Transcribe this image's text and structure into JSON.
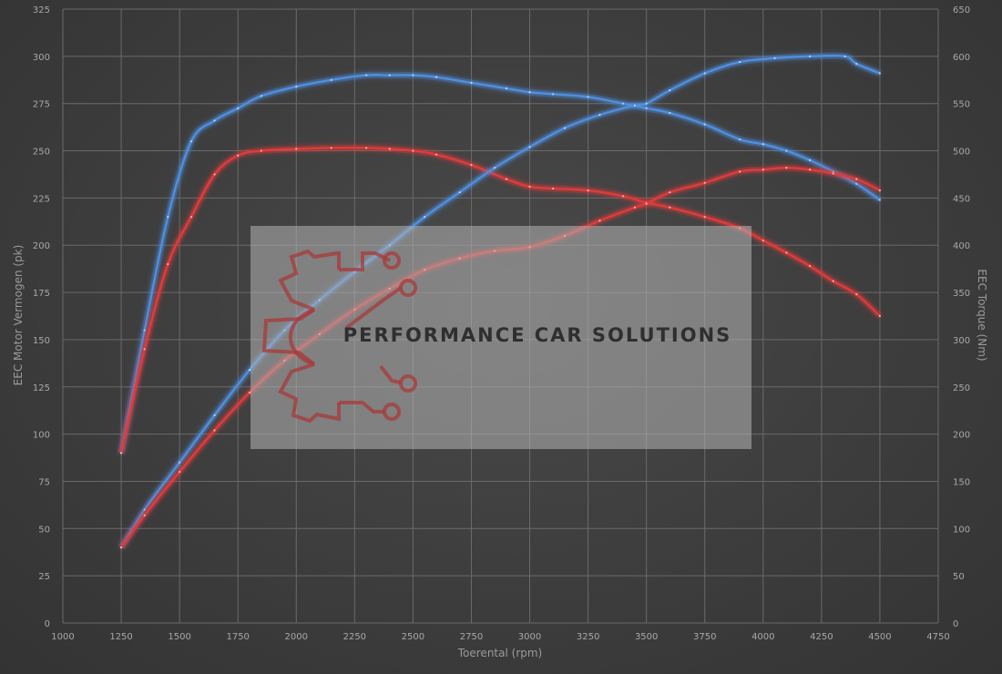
{
  "chart_data": {
    "type": "line",
    "xlabel": "Toerental (rpm)",
    "ylabel_left": "EEC Motor Vermogen (pk)",
    "ylabel_right": "EEC Torque (Nm)",
    "xlim": [
      1000,
      4750
    ],
    "xticks": [
      1000,
      1250,
      1500,
      1750,
      2000,
      2250,
      2500,
      2750,
      3000,
      3250,
      3500,
      3750,
      4000,
      4250,
      4500,
      4750
    ],
    "ylim_left": [
      0,
      325
    ],
    "yticks_left": [
      0,
      25,
      50,
      75,
      100,
      125,
      150,
      175,
      200,
      225,
      250,
      275,
      300,
      325
    ],
    "ylim_right": [
      0,
      650
    ],
    "yticks_right": [
      0,
      50,
      100,
      150,
      200,
      250,
      300,
      350,
      400,
      450,
      500,
      550,
      600,
      650
    ],
    "grid": true,
    "series": [
      {
        "color": "#4f8fe0",
        "axis": "right",
        "x": [
          1250,
          1350,
          1450,
          1550,
          1650,
          1750,
          1850,
          2000,
          2150,
          2300,
          2400,
          2500,
          2600,
          2750,
          2900,
          3000,
          3100,
          3250,
          3400,
          3500,
          3600,
          3750,
          3900,
          4000,
          4100,
          4200,
          4300,
          4400,
          4500
        ],
        "y": [
          180,
          310,
          430,
          510,
          532,
          545,
          558,
          568,
          575,
          580,
          580,
          580,
          578,
          572,
          566,
          562,
          560,
          557,
          550,
          545,
          540,
          528,
          512,
          507,
          500,
          490,
          478,
          465,
          448
        ]
      },
      {
        "color": "#e03a3a",
        "axis": "right",
        "x": [
          1250,
          1350,
          1450,
          1550,
          1650,
          1750,
          1850,
          2000,
          2150,
          2300,
          2400,
          2500,
          2600,
          2750,
          2900,
          3000,
          3100,
          3250,
          3400,
          3500,
          3600,
          3750,
          3900,
          4000,
          4100,
          4200,
          4300,
          4400,
          4500
        ],
        "y": [
          180,
          290,
          380,
          430,
          475,
          495,
          500,
          502,
          503,
          503,
          502,
          500,
          496,
          485,
          470,
          462,
          460,
          458,
          452,
          445,
          440,
          430,
          418,
          405,
          392,
          378,
          362,
          348,
          325
        ]
      },
      {
        "color": "#4f8fe0",
        "axis": "left",
        "x": [
          1250,
          1350,
          1500,
          1650,
          1800,
          1950,
          2100,
          2250,
          2400,
          2550,
          2700,
          2850,
          3000,
          3150,
          3300,
          3450,
          3500,
          3600,
          3750,
          3900,
          4050,
          4200,
          4350,
          4400,
          4500
        ],
        "y": [
          40,
          60,
          85,
          110,
          134,
          155,
          171,
          186,
          200,
          215,
          228,
          241,
          252,
          262,
          269,
          274,
          275,
          282,
          291,
          297,
          299,
          300,
          300,
          296,
          291
        ]
      },
      {
        "color": "#e03a3a",
        "axis": "left",
        "x": [
          1250,
          1350,
          1500,
          1650,
          1800,
          1950,
          2100,
          2250,
          2400,
          2550,
          2700,
          2850,
          3000,
          3150,
          3300,
          3450,
          3500,
          3600,
          3750,
          3900,
          4000,
          4100,
          4200,
          4300,
          4400,
          4500
        ],
        "y": [
          40,
          57,
          80,
          102,
          122,
          139,
          153,
          166,
          177,
          187,
          193,
          197,
          199,
          205,
          213,
          220,
          222,
          228,
          233,
          239,
          240,
          241,
          240,
          238,
          235,
          229
        ]
      }
    ]
  },
  "watermark": {
    "brand_text": "PERFORMANCE CAR SOLUTIONS",
    "logo_icon": "gear-circuit-icon"
  }
}
